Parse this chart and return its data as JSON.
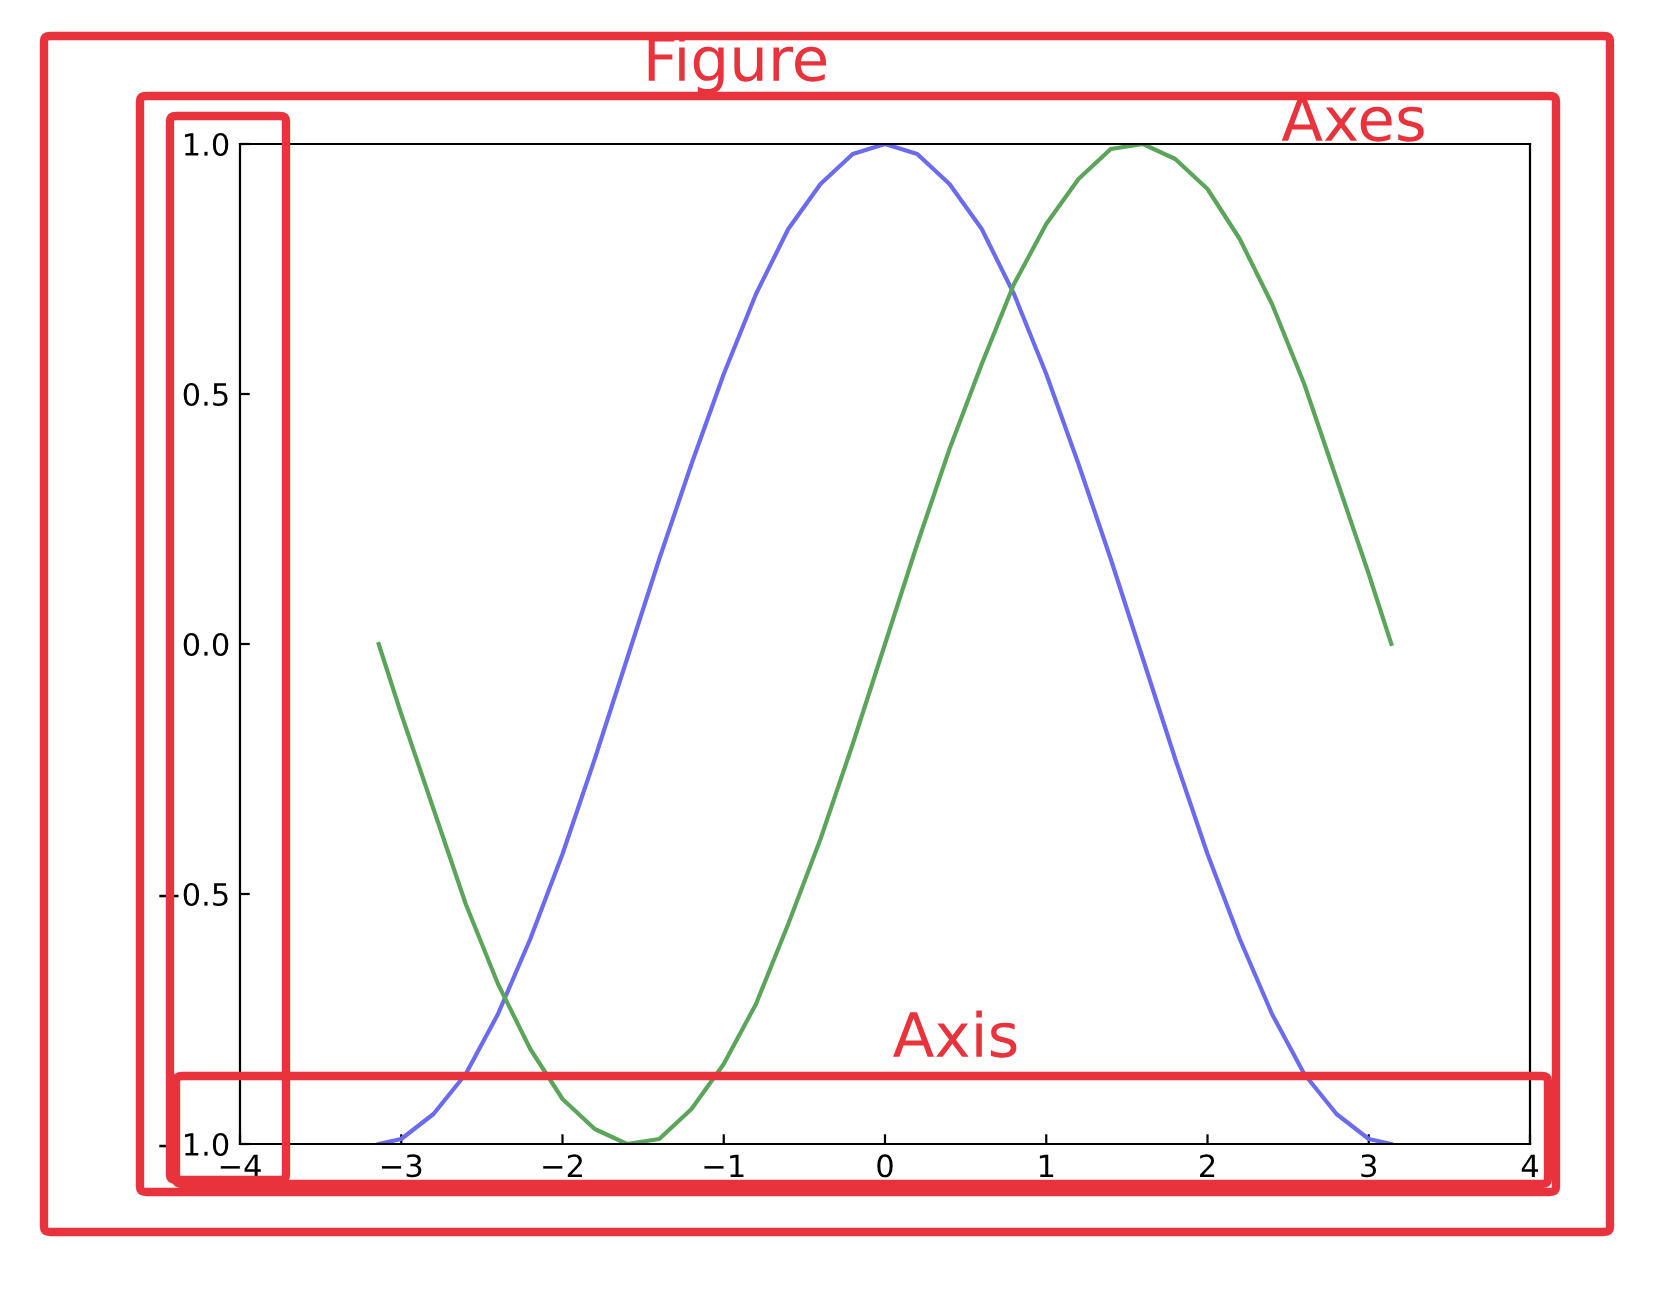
{
  "chart_data": {
    "type": "line",
    "x": [
      -3.14,
      -3.0,
      -2.8,
      -2.6,
      -2.4,
      -2.2,
      -2.0,
      -1.8,
      -1.6,
      -1.4,
      -1.2,
      -1.0,
      -0.8,
      -0.6,
      -0.4,
      -0.2,
      0,
      0.2,
      0.4,
      0.6,
      0.8,
      1.0,
      1.2,
      1.4,
      1.6,
      1.8,
      2.0,
      2.2,
      2.4,
      2.6,
      2.8,
      3.0,
      3.14
    ],
    "series": [
      {
        "color": "#6b6bf0",
        "values": [
          -1.0,
          -0.99,
          -0.94,
          -0.86,
          -0.74,
          -0.59,
          -0.42,
          -0.23,
          -0.03,
          0.17,
          0.36,
          0.54,
          0.7,
          0.83,
          0.92,
          0.98,
          1.0,
          0.98,
          0.92,
          0.83,
          0.7,
          0.54,
          0.36,
          0.17,
          -0.03,
          -0.23,
          -0.42,
          -0.59,
          -0.74,
          -0.86,
          -0.94,
          -0.99,
          -1.0
        ]
      },
      {
        "color": "#5aa55a",
        "values": [
          0.0,
          -0.14,
          -0.33,
          -0.52,
          -0.68,
          -0.81,
          -0.91,
          -0.97,
          -1.0,
          -0.99,
          -0.93,
          -0.84,
          -0.72,
          -0.56,
          -0.39,
          -0.2,
          0.0,
          0.2,
          0.39,
          0.56,
          0.72,
          0.84,
          0.93,
          0.99,
          1.0,
          0.97,
          0.91,
          0.81,
          0.68,
          0.52,
          0.33,
          0.14,
          0.0
        ]
      }
    ],
    "xlim": [
      -4,
      4
    ],
    "ylim": [
      -1,
      1
    ],
    "xticks": [
      {
        "value": -4,
        "label": "−4"
      },
      {
        "value": -3,
        "label": "−3"
      },
      {
        "value": -2,
        "label": "−2"
      },
      {
        "value": -1,
        "label": "−1"
      },
      0,
      1,
      2,
      3,
      4
    ],
    "yticks": [
      {
        "value": -1,
        "label": "−1.0"
      },
      {
        "value": -0.5,
        "label": "−0.5"
      },
      {
        "value": 0,
        "label": "0.0"
      },
      {
        "value": 0.5,
        "label": "0.5"
      },
      {
        "value": 1,
        "label": "1.0"
      }
    ],
    "grid": false,
    "legend": false,
    "annotations": [
      "Figure",
      "Axes",
      "Axis"
    ]
  }
}
